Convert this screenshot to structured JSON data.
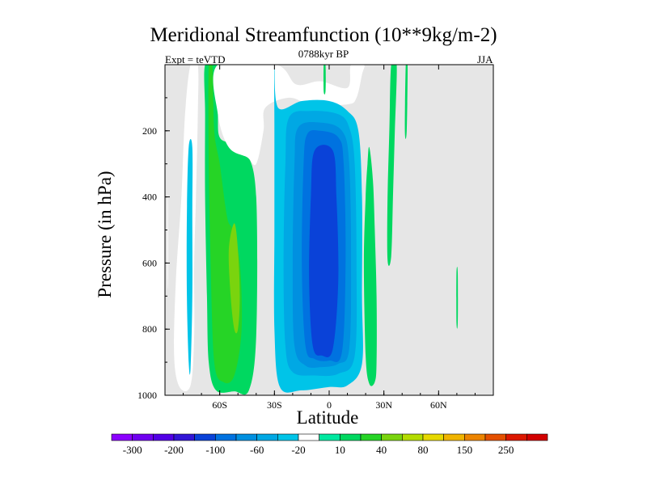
{
  "chart_data": {
    "type": "heatmap",
    "title": "Meridional Streamfunction (10**9kg/m-2)",
    "subtitle": "0788kyr BP",
    "left_label": "Expt = teVTD",
    "right_label": "JJA",
    "xlabel": "Latitude",
    "ylabel": "Pressure (in hPa)",
    "xlim": [
      -90,
      90
    ],
    "ylim": [
      1000,
      0
    ],
    "x_ticks": [
      {
        "value": -60,
        "label": "60S"
      },
      {
        "value": -30,
        "label": "30S"
      },
      {
        "value": 0,
        "label": "0"
      },
      {
        "value": 30,
        "label": "30N"
      },
      {
        "value": 60,
        "label": "60N"
      }
    ],
    "y_ticks": [
      {
        "value": 200,
        "label": "200"
      },
      {
        "value": 400,
        "label": "400"
      },
      {
        "value": 600,
        "label": "600"
      },
      {
        "value": 800,
        "label": "800"
      },
      {
        "value": 1000,
        "label": "1000"
      }
    ],
    "missing_color": "#e6e6e6",
    "colorbar": {
      "levels": [
        "-300",
        "-250",
        "-200",
        "-150",
        "-100",
        "-80",
        "-60",
        "-40",
        "-20",
        "-10",
        "10",
        "20",
        "40",
        "60",
        "80",
        "100",
        "150",
        "200",
        "250",
        "300"
      ],
      "labels": [
        "-300",
        "-200",
        "-100",
        "-60",
        "-20",
        "10",
        "40",
        "80",
        "150",
        "250"
      ],
      "colors": [
        "#8b00ff",
        "#6f00f0",
        "#5200e6",
        "#3216d6",
        "#0a42d8",
        "#0072e0",
        "#0090e0",
        "#00a8e4",
        "#00c4e8",
        "#ffffff",
        "#00e8a0",
        "#00d860",
        "#26d426",
        "#7ad40e",
        "#b4dc00",
        "#e6d800",
        "#f0b400",
        "#ec8400",
        "#e45000",
        "#dc1800",
        "#d20000"
      ]
    },
    "contours": [
      {
        "name": "sh-outer",
        "level": -10,
        "points": [
          [
            -76,
            0
          ],
          [
            -79,
            150
          ],
          [
            -81,
            400
          ],
          [
            -84,
            650
          ],
          [
            -85,
            880
          ],
          [
            -82,
            975
          ],
          [
            -76,
            970
          ],
          [
            -74,
            820
          ],
          [
            -74,
            600
          ],
          [
            -73,
            400
          ],
          [
            -72,
            150
          ],
          [
            -72,
            0
          ]
        ]
      },
      {
        "name": "sh-inner",
        "level": -20,
        "points": [
          [
            -77,
            250
          ],
          [
            -78,
            450
          ],
          [
            -78,
            700
          ],
          [
            -77,
            900
          ],
          [
            -76,
            920
          ],
          [
            -75,
            700
          ],
          [
            -75,
            450
          ],
          [
            -75,
            250
          ]
        ]
      },
      {
        "name": "sh-edge",
        "level": -10,
        "points": [
          [
            -88.7,
            420
          ],
          [
            -88.4,
            420
          ],
          [
            -88.3,
            650
          ],
          [
            -88.6,
            650
          ]
        ]
      },
      {
        "name": "mid-green",
        "level": 10,
        "points": [
          [
            -68,
            0
          ],
          [
            -68,
            150
          ],
          [
            -68,
            400
          ],
          [
            -67,
            700
          ],
          [
            -66,
            900
          ],
          [
            -62,
            985
          ],
          [
            -52,
            988
          ],
          [
            -44,
            985
          ],
          [
            -40,
            820
          ],
          [
            -40,
            400
          ],
          [
            -45,
            270
          ],
          [
            -53,
            240
          ],
          [
            -60,
            220
          ],
          [
            -61,
            150
          ],
          [
            -61,
            0
          ]
        ]
      },
      {
        "name": "mid-green2",
        "level": 20,
        "points": [
          [
            -64,
            0
          ],
          [
            -63,
            200
          ],
          [
            -60,
            300
          ],
          [
            -56,
            460
          ],
          [
            -53,
            500
          ],
          [
            -49,
            600
          ],
          [
            -48,
            800
          ],
          [
            -52,
            940
          ],
          [
            -58,
            960
          ],
          [
            -63,
            900
          ],
          [
            -65,
            600
          ],
          [
            -66,
            300
          ],
          [
            -66,
            0
          ]
        ]
      },
      {
        "name": "mid-green3",
        "level": 40,
        "points": [
          [
            -52,
            480
          ],
          [
            -50,
            560
          ],
          [
            -49,
            700
          ],
          [
            -50,
            800
          ],
          [
            -52,
            800
          ],
          [
            -54,
            700
          ],
          [
            -55,
            560
          ]
        ]
      },
      {
        "name": "top-cyan",
        "level": -10,
        "points": [
          [
            -61,
            0
          ],
          [
            -61,
            150
          ],
          [
            -55,
            250
          ],
          [
            -45,
            280
          ],
          [
            -40,
            300
          ],
          [
            -36,
            200
          ],
          [
            -35,
            130
          ],
          [
            -22,
            100
          ],
          [
            -10,
            120
          ],
          [
            10,
            120
          ],
          [
            15,
            100
          ],
          [
            18,
            30
          ],
          [
            19,
            0
          ],
          [
            12,
            0
          ],
          [
            10,
            70
          ],
          [
            -5,
            50
          ],
          [
            -18,
            60
          ],
          [
            -29,
            0
          ]
        ]
      },
      {
        "name": "center-cell1",
        "level": -20,
        "points": [
          [
            -30,
            0
          ],
          [
            -30,
            200
          ],
          [
            -30,
            500
          ],
          [
            -30,
            800
          ],
          [
            -27,
            975
          ],
          [
            -15,
            985
          ],
          [
            0,
            975
          ],
          [
            10,
            970
          ],
          [
            18,
            905
          ],
          [
            18,
            700
          ],
          [
            18,
            400
          ],
          [
            16,
            200
          ],
          [
            10,
            140
          ],
          [
            0,
            110
          ],
          [
            -15,
            110
          ],
          [
            -28,
            130
          ]
        ]
      },
      {
        "name": "center-cell2",
        "level": -40,
        "points": [
          [
            -22,
            160
          ],
          [
            -24,
            300
          ],
          [
            -25,
            600
          ],
          [
            -24,
            850
          ],
          [
            -20,
            930
          ],
          [
            -8,
            940
          ],
          [
            5,
            935
          ],
          [
            14,
            880
          ],
          [
            15,
            600
          ],
          [
            14,
            300
          ],
          [
            11,
            190
          ],
          [
            5,
            150
          ],
          [
            -10,
            140
          ]
        ]
      },
      {
        "name": "center-cell3",
        "level": -60,
        "points": [
          [
            -17,
            190
          ],
          [
            -19,
            300
          ],
          [
            -20,
            600
          ],
          [
            -19,
            850
          ],
          [
            -13,
            910
          ],
          [
            -5,
            915
          ],
          [
            5,
            905
          ],
          [
            11,
            860
          ],
          [
            12,
            600
          ],
          [
            11,
            300
          ],
          [
            7,
            200
          ],
          [
            -5,
            175
          ]
        ]
      },
      {
        "name": "center-cell4",
        "level": -80,
        "points": [
          [
            -12,
            210
          ],
          [
            -14,
            300
          ],
          [
            -15,
            600
          ],
          [
            -13,
            850
          ],
          [
            -8,
            890
          ],
          [
            0,
            895
          ],
          [
            7,
            870
          ],
          [
            9,
            600
          ],
          [
            8,
            300
          ],
          [
            5,
            220
          ],
          [
            -5,
            200
          ]
        ]
      },
      {
        "name": "center-cell5",
        "level": -100,
        "points": [
          [
            -8,
            260
          ],
          [
            -10,
            400
          ],
          [
            -11,
            650
          ],
          [
            -9,
            850
          ],
          [
            -4,
            880
          ],
          [
            2,
            860
          ],
          [
            5,
            650
          ],
          [
            4,
            400
          ],
          [
            2,
            260
          ]
        ]
      },
      {
        "name": "nh-green",
        "level": 10,
        "points": [
          [
            22,
            250
          ],
          [
            24,
            350
          ],
          [
            25,
            500
          ],
          [
            26,
            700
          ],
          [
            26,
            900
          ],
          [
            25,
            960
          ],
          [
            22,
            965
          ],
          [
            20,
            880
          ],
          [
            19,
            600
          ],
          [
            20,
            400
          ],
          [
            21,
            300
          ]
        ]
      },
      {
        "name": "nh-thin",
        "level": 10,
        "points": [
          [
            34,
            0
          ],
          [
            37,
            0
          ],
          [
            36,
            200
          ],
          [
            35,
            400
          ],
          [
            34,
            580
          ],
          [
            32,
            590
          ],
          [
            32,
            400
          ],
          [
            33,
            200
          ]
        ]
      },
      {
        "name": "nh-thin2",
        "level": 10,
        "points": [
          [
            42,
            0
          ],
          [
            43,
            0
          ],
          [
            42.5,
            200
          ],
          [
            41.5,
            200
          ]
        ]
      },
      {
        "name": "nh-thin3",
        "level": 10,
        "points": [
          [
            69.8,
            630
          ],
          [
            70.5,
            630
          ],
          [
            70.5,
            780
          ],
          [
            69.8,
            780
          ]
        ]
      },
      {
        "name": "top-narrow",
        "level": 10,
        "points": [
          [
            -3,
            0
          ],
          [
            -2,
            0
          ],
          [
            -2,
            80
          ],
          [
            -3,
            80
          ]
        ]
      }
    ]
  }
}
